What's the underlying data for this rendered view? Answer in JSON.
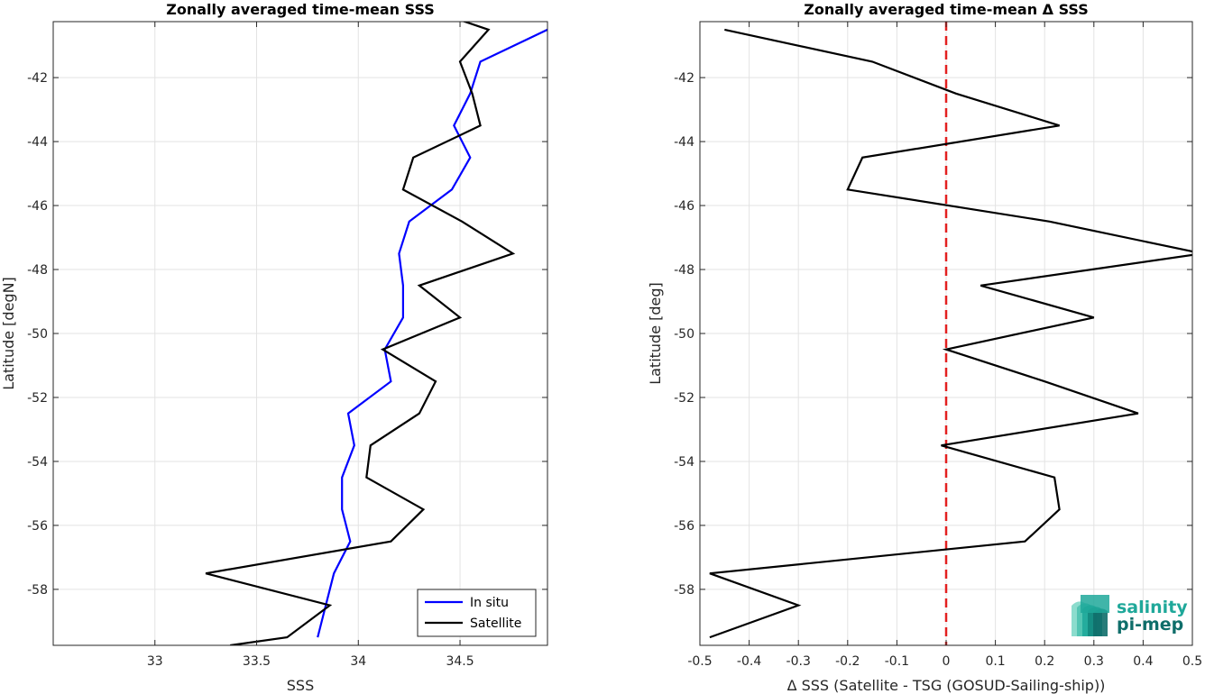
{
  "chart_data": [
    {
      "type": "line",
      "title": "Zonally averaged time-mean SSS",
      "xlabel": "SSS",
      "ylabel": "Latitude [degN]",
      "xlim": [
        32.5,
        34.93
      ],
      "ylim": [
        -59.75,
        -40.25
      ],
      "xticks": [
        33,
        33.5,
        34,
        34.5
      ],
      "xtick_labels": [
        "33",
        "33.5",
        "34",
        "34.5"
      ],
      "yticks": [
        -58,
        -56,
        -54,
        -52,
        -50,
        -48,
        -46,
        -44,
        -42
      ],
      "ytick_labels": [
        "-58",
        "-56",
        "-54",
        "-52",
        "-50",
        "-48",
        "-46",
        "-44",
        "-42"
      ],
      "grid": true,
      "legend": "bottom-right",
      "series": [
        {
          "name": "In situ",
          "color": "#0000ff",
          "points": [
            [
              34.93,
              -40.5
            ],
            [
              34.6,
              -41.5
            ],
            [
              34.55,
              -42.5
            ],
            [
              34.47,
              -43.5
            ],
            [
              34.55,
              -44.5
            ],
            [
              34.46,
              -45.5
            ],
            [
              34.25,
              -46.5
            ],
            [
              34.2,
              -47.5
            ],
            [
              34.22,
              -48.5
            ],
            [
              34.22,
              -49.5
            ],
            [
              34.13,
              -50.5
            ],
            [
              34.16,
              -51.5
            ],
            [
              33.95,
              -52.5
            ],
            [
              33.98,
              -53.5
            ],
            [
              33.92,
              -54.5
            ],
            [
              33.92,
              -55.5
            ],
            [
              33.96,
              -56.5
            ],
            [
              33.88,
              -57.5
            ],
            [
              33.84,
              -58.5
            ],
            [
              33.8,
              -59.5
            ]
          ]
        },
        {
          "name": "Satellite",
          "color": "#000000",
          "points": [
            [
              34.5,
              -40.2
            ],
            [
              34.64,
              -40.5
            ],
            [
              34.5,
              -41.5
            ],
            [
              34.56,
              -42.5
            ],
            [
              34.6,
              -43.5
            ],
            [
              34.27,
              -44.5
            ],
            [
              34.22,
              -45.5
            ],
            [
              34.51,
              -46.5
            ],
            [
              34.76,
              -47.5
            ],
            [
              34.3,
              -48.5
            ],
            [
              34.5,
              -49.5
            ],
            [
              34.12,
              -50.5
            ],
            [
              34.38,
              -51.5
            ],
            [
              34.3,
              -52.5
            ],
            [
              34.06,
              -53.5
            ],
            [
              34.04,
              -54.5
            ],
            [
              34.32,
              -55.5
            ],
            [
              34.16,
              -56.5
            ],
            [
              33.25,
              -57.5
            ],
            [
              33.86,
              -58.5
            ],
            [
              33.65,
              -59.5
            ],
            [
              33.37,
              -59.75
            ]
          ]
        }
      ]
    },
    {
      "type": "line",
      "title": "Zonally averaged time-mean Δ SSS",
      "xlabel": "Δ SSS (Satellite - TSG (GOSUD-Sailing-ship))",
      "ylabel": "Latitude [deg]",
      "xlim": [
        -0.5,
        0.5
      ],
      "ylim": [
        -59.75,
        -40.25
      ],
      "xticks": [
        -0.5,
        -0.4,
        -0.3,
        -0.2,
        -0.1,
        0,
        0.1,
        0.2,
        0.3,
        0.4,
        0.5
      ],
      "xtick_labels": [
        "-0.5",
        "-0.4",
        "-0.3",
        "-0.2",
        "-0.1",
        "0",
        "0.1",
        "0.2",
        "0.3",
        "0.4",
        "0.5"
      ],
      "yticks": [
        -58,
        -56,
        -54,
        -52,
        -50,
        -48,
        -46,
        -44,
        -42
      ],
      "ytick_labels": [
        "-58",
        "-56",
        "-54",
        "-52",
        "-50",
        "-48",
        "-46",
        "-44",
        "-42"
      ],
      "grid": true,
      "zero_line": {
        "x": 0,
        "color": "#e32020",
        "style": "dashed"
      },
      "series": [
        {
          "color": "#000000",
          "points": [
            [
              -0.45,
              -40.5
            ],
            [
              -0.15,
              -41.5
            ],
            [
              0.02,
              -42.5
            ],
            [
              0.23,
              -43.5
            ],
            [
              -0.17,
              -44.5
            ],
            [
              -0.2,
              -45.5
            ],
            [
              0.21,
              -46.5
            ],
            [
              0.52,
              -47.5
            ],
            [
              0.07,
              -48.5
            ],
            [
              0.3,
              -49.5
            ],
            [
              0.0,
              -50.5
            ],
            [
              0.2,
              -51.5
            ],
            [
              0.39,
              -52.5
            ],
            [
              -0.01,
              -53.5
            ],
            [
              0.22,
              -54.5
            ],
            [
              0.23,
              -55.5
            ],
            [
              0.16,
              -56.5
            ],
            [
              -0.48,
              -57.5
            ],
            [
              -0.3,
              -58.5
            ],
            [
              -0.48,
              -59.5
            ]
          ]
        }
      ]
    }
  ],
  "logo": {
    "line1": "salinity",
    "line2": "pi-mep"
  }
}
